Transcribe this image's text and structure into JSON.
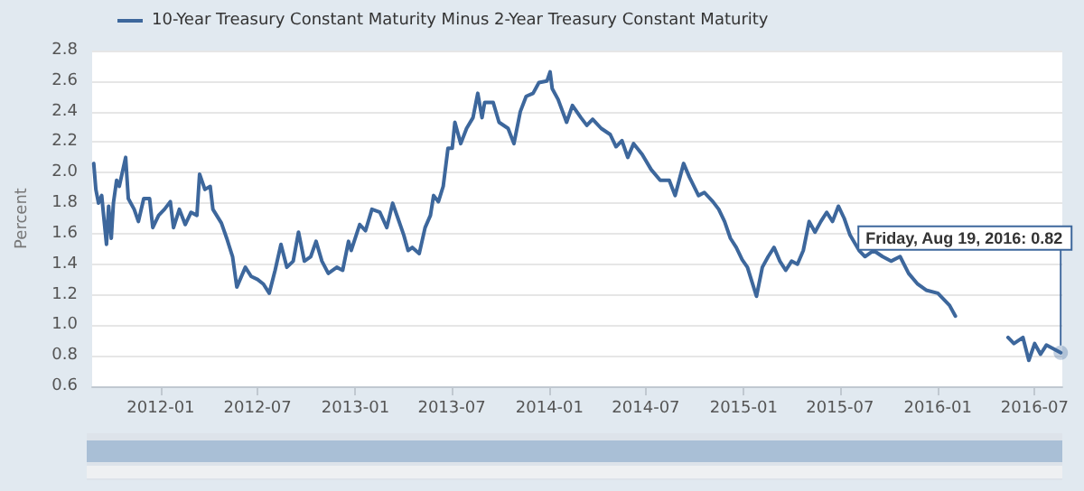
{
  "chart_data": {
    "type": "line",
    "ylabel": "Percent",
    "legend": "top left",
    "grid": "y",
    "marker": "none",
    "line_style": "solid",
    "xlim": [
      "2011-08-25",
      "2016-08-22"
    ],
    "ylim": [
      0.6,
      2.8
    ],
    "xticks": [
      "2012-01",
      "2012-07",
      "2013-01",
      "2013-07",
      "2014-01",
      "2014-07",
      "2015-01",
      "2015-07",
      "2016-01",
      "2016-07"
    ],
    "yticks": [
      0.6,
      0.8,
      {
        "value": 1.0,
        "label": "1.0"
      },
      1.2,
      1.4,
      1.6,
      1.8,
      {
        "value": 2.0,
        "label": "2.0"
      },
      2.2,
      2.4,
      2.6,
      2.8
    ],
    "annotations": [
      {
        "text": "Friday, Aug 19, 2016: 0.82",
        "x": "2016-08-19",
        "y": 0.82
      }
    ],
    "series": [
      {
        "name": "10-Year Treasury Constant Maturity Minus 2-Year Treasury Constant Maturity",
        "color": "#3d679c",
        "x": [
          "2011-08-28",
          "2011-09-01",
          "2011-09-06",
          "2011-09-12",
          "2011-09-15",
          "2011-09-21",
          "2011-09-25",
          "2011-09-30",
          "2011-10-04",
          "2011-10-10",
          "2011-10-15",
          "2011-10-27",
          "2011-11-01",
          "2011-11-12",
          "2011-11-20",
          "2011-11-30",
          "2011-12-11",
          "2011-12-17",
          "2011-12-28",
          "2012-01-08",
          "2012-01-19",
          "2012-01-25",
          "2012-02-05",
          "2012-02-16",
          "2012-02-27",
          "2012-03-09",
          "2012-03-14",
          "2012-03-24",
          "2012-04-03",
          "2012-04-08",
          "2012-04-24",
          "2012-05-04",
          "2012-05-15",
          "2012-05-23",
          "2012-06-08",
          "2012-06-19",
          "2012-07-01",
          "2012-07-12",
          "2012-07-23",
          "2012-08-03",
          "2012-08-14",
          "2012-08-25",
          "2012-09-06",
          "2012-09-16",
          "2012-09-27",
          "2012-10-09",
          "2012-10-19",
          "2012-10-30",
          "2012-11-11",
          "2012-11-27",
          "2012-12-08",
          "2012-12-19",
          "2012-12-24",
          "2013-01-09",
          "2013-01-20",
          "2013-02-01",
          "2013-02-16",
          "2013-03-01",
          "2013-03-12",
          "2013-03-22",
          "2013-04-02",
          "2013-04-10",
          "2013-04-18",
          "2013-05-01",
          "2013-05-12",
          "2013-05-22",
          "2013-05-28",
          "2013-06-06",
          "2013-06-15",
          "2013-06-24",
          "2013-07-02",
          "2013-07-07",
          "2013-07-18",
          "2013-07-29",
          "2013-08-10",
          "2013-08-19",
          "2013-08-27",
          "2013-09-01",
          "2013-09-17",
          "2013-09-28",
          "2013-10-15",
          "2013-10-26",
          "2013-11-07",
          "2013-11-18",
          "2013-12-01",
          "2013-12-12",
          "2013-12-27",
          "2014-01-02",
          "2014-01-06",
          "2014-01-17",
          "2014-02-02",
          "2014-02-13",
          "2014-03-01",
          "2014-03-12",
          "2014-03-23",
          "2014-04-08",
          "2014-04-25",
          "2014-05-06",
          "2014-05-17",
          "2014-05-28",
          "2014-06-08",
          "2014-06-24",
          "2014-07-11",
          "2014-07-28",
          "2014-08-14",
          "2014-08-25",
          "2014-09-10",
          "2014-09-21",
          "2014-10-08",
          "2014-10-19",
          "2014-11-04",
          "2014-11-15",
          "2014-11-26",
          "2014-12-07",
          "2014-12-18",
          "2014-12-29",
          "2015-01-08",
          "2015-01-25",
          "2015-02-05",
          "2015-02-16",
          "2015-02-27",
          "2015-03-10",
          "2015-03-21",
          "2015-04-01",
          "2015-04-12",
          "2015-04-23",
          "2015-05-04",
          "2015-05-15",
          "2015-05-26",
          "2015-06-06",
          "2015-06-17",
          "2015-06-28",
          "2015-07-09",
          "2015-07-20",
          "2015-08-06",
          "2015-08-17",
          "2015-09-02",
          "2015-09-19",
          "2015-10-05",
          "2015-10-22",
          "2015-11-07",
          "2015-11-24",
          "2015-12-10",
          "2016-01-01",
          "2016-01-23",
          "2016-02-03",
          "2016-02-28",
          "2016-05-12",
          "2016-05-23",
          "2016-06-09",
          "2016-06-20",
          "2016-07-01",
          "2016-07-12",
          "2016-07-23",
          "2016-08-19"
        ],
        "values": [
          2.06,
          1.89,
          1.8,
          1.85,
          1.74,
          1.53,
          1.78,
          1.57,
          1.8,
          1.95,
          1.91,
          2.1,
          1.83,
          1.76,
          1.68,
          1.83,
          1.83,
          1.64,
          1.72,
          1.76,
          1.81,
          1.64,
          1.76,
          1.66,
          1.74,
          1.72,
          1.99,
          1.89,
          1.91,
          1.76,
          1.67,
          1.57,
          1.45,
          1.25,
          1.38,
          1.32,
          1.3,
          1.27,
          1.21,
          1.36,
          1.53,
          1.38,
          1.42,
          1.61,
          1.42,
          1.45,
          1.55,
          1.42,
          1.34,
          1.38,
          1.36,
          1.55,
          1.49,
          1.66,
          1.62,
          1.76,
          1.74,
          1.64,
          1.8,
          1.7,
          1.59,
          1.49,
          1.51,
          1.47,
          1.64,
          1.72,
          1.85,
          1.81,
          1.91,
          2.16,
          2.16,
          2.33,
          2.19,
          2.29,
          2.36,
          2.52,
          2.36,
          2.46,
          2.46,
          2.33,
          2.29,
          2.19,
          2.4,
          2.5,
          2.52,
          2.59,
          2.6,
          2.66,
          2.55,
          2.48,
          2.33,
          2.44,
          2.36,
          2.31,
          2.35,
          2.29,
          2.25,
          2.17,
          2.21,
          2.1,
          2.19,
          2.12,
          2.02,
          1.95,
          1.95,
          1.85,
          2.06,
          1.97,
          1.85,
          1.87,
          1.81,
          1.76,
          1.68,
          1.57,
          1.51,
          1.43,
          1.38,
          1.19,
          1.38,
          1.45,
          1.51,
          1.42,
          1.36,
          1.42,
          1.4,
          1.49,
          1.68,
          1.61,
          1.68,
          1.74,
          1.68,
          1.78,
          1.7,
          1.59,
          1.49,
          1.45,
          1.49,
          1.45,
          1.42,
          1.45,
          1.34,
          1.27,
          1.23,
          1.21,
          1.13,
          1.06,
          null,
          0.92,
          0.88,
          0.92,
          0.77,
          0.88,
          0.81,
          0.87,
          0.82
        ]
      }
    ]
  }
}
